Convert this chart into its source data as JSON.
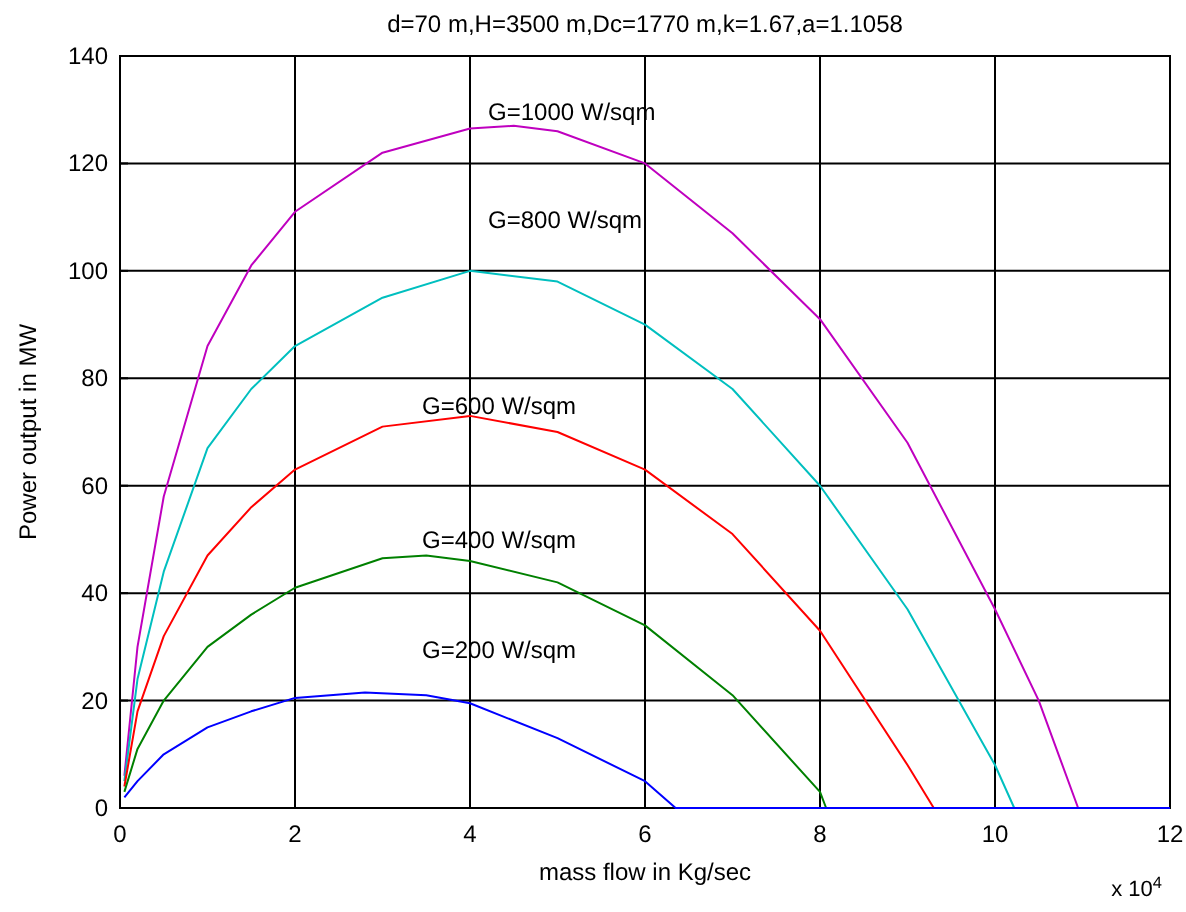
{
  "chart_data": {
    "type": "line",
    "title": "d=70 m,H=3500 m,Dc=1770 m,k=1.67,a=1.1058",
    "xlabel": "mass flow in Kg/sec",
    "ylabel": "Power output in MW",
    "xlim": [
      0,
      12
    ],
    "xticks": [
      0,
      2,
      4,
      6,
      8,
      10,
      12
    ],
    "ylim": [
      0,
      140
    ],
    "yticks": [
      0,
      20,
      40,
      60,
      80,
      100,
      120,
      140
    ],
    "grid": true,
    "annotations": [
      "x 10$^{4}$",
      "G=1000 W/sqm",
      "G=800 W/sqm",
      "G=600 W/sqm",
      "G=400 W/sqm",
      "G=200 W/sqm"
    ],
    "series": [
      {
        "color": "#bf00bf",
        "x": [
          0.05,
          0.2,
          0.5,
          1,
          1.5,
          2,
          3,
          4,
          4.5,
          5,
          6,
          7,
          8,
          9,
          10,
          10.5,
          10.95,
          12
        ],
        "values": [
          6,
          30,
          58,
          86,
          101,
          111,
          122,
          126.5,
          127,
          126,
          120,
          107,
          91,
          68,
          37,
          20,
          0,
          0
        ]
      },
      {
        "color": "#00bfbf",
        "x": [
          0.05,
          0.2,
          0.5,
          1,
          1.5,
          2,
          3,
          4,
          5,
          6,
          7,
          8,
          9,
          10,
          10.22,
          12
        ],
        "values": [
          5,
          24,
          44,
          67,
          78,
          86,
          95,
          100,
          98,
          90,
          78,
          60,
          37,
          8,
          0,
          0
        ]
      },
      {
        "color": "#ff0000",
        "x": [
          0.05,
          0.2,
          0.5,
          1,
          1.5,
          2,
          3,
          4,
          5,
          6,
          7,
          8,
          9,
          9.3,
          12
        ],
        "values": [
          4,
          18,
          32,
          47,
          56,
          63,
          71,
          73,
          70,
          63,
          51,
          33,
          8,
          0,
          0
        ]
      },
      {
        "color": "#008000",
        "x": [
          0.05,
          0.2,
          0.5,
          1,
          1.5,
          2,
          3,
          3.5,
          4,
          5,
          6,
          7,
          8,
          8.07,
          12
        ],
        "values": [
          3,
          11,
          20,
          30,
          36,
          41,
          46.5,
          47,
          46,
          42,
          34,
          21,
          3,
          0,
          0
        ]
      },
      {
        "color": "#0000ff",
        "x": [
          0.05,
          0.2,
          0.5,
          1,
          1.5,
          2,
          2.8,
          3.5,
          4,
          5,
          6,
          6.35,
          12
        ],
        "values": [
          2,
          5,
          10,
          15,
          18,
          20.5,
          21.5,
          21,
          19.5,
          13,
          5,
          0,
          0
        ]
      }
    ]
  }
}
